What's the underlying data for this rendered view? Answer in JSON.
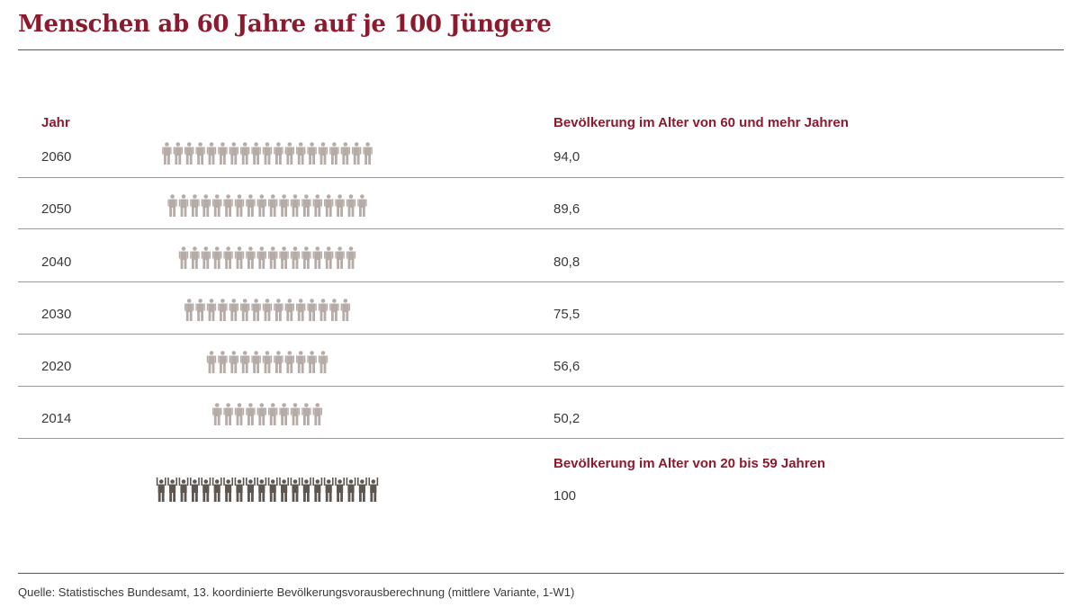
{
  "title": "Menschen ab 60 Jahre auf je 100 Jüngere",
  "chart_data": {
    "type": "table",
    "year_header": "Jahr",
    "old_header": "Bevölkerung im Alter von 60 und mehr Jahren",
    "rows": [
      {
        "year": "2060",
        "value": 94.0,
        "label": "94,0"
      },
      {
        "year": "2050",
        "value": 89.6,
        "label": "89,6"
      },
      {
        "year": "2040",
        "value": 80.8,
        "label": "80,8"
      },
      {
        "year": "2030",
        "value": 75.5,
        "label": "75,5"
      },
      {
        "year": "2020",
        "value": 56.6,
        "label": "56,6"
      },
      {
        "year": "2014",
        "value": 50.2,
        "label": "50,2"
      }
    ],
    "reference": {
      "header": "Bevölkerung im Alter von 20 bis 59 Jahren",
      "value": 100,
      "label": "100"
    },
    "colors": {
      "old_icon": "#b5aca8",
      "young_icon": "#5e5650",
      "accent": "#8c1a2f"
    }
  },
  "source": "Quelle: Statistisches Bundesamt, 13. koordinierte Bevölkerungsvorausberechnung (mittlere Variante, 1-W1)"
}
